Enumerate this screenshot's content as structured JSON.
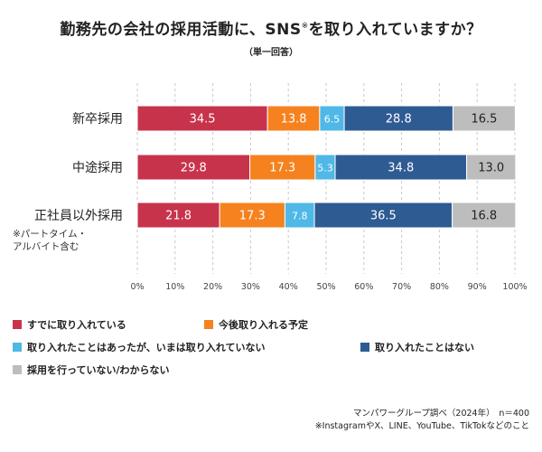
{
  "title_main": "勤務先の会社の採用活動に、SNS",
  "title_mark": "※",
  "title_tail": "を取り入れていますか？",
  "subtitle": "（単一回答）",
  "chart_data": {
    "type": "bar",
    "orientation": "horizontal",
    "stacked": true,
    "categories": [
      "新卒採用",
      "中途採用",
      "正社員以外採用"
    ],
    "category_notes": [
      "",
      "",
      "※パートタイム・アルバイト含む"
    ],
    "series": [
      {
        "name": "すでに取り入れている",
        "color": "#c8334c",
        "values": [
          34.5,
          29.8,
          21.8
        ]
      },
      {
        "name": "今後取り入れる予定",
        "color": "#f5821f",
        "values": [
          13.8,
          17.3,
          17.3
        ]
      },
      {
        "name": "取り入れたことはあったが、いまは取り入れていない",
        "color": "#4fb8e6",
        "values": [
          6.5,
          5.3,
          7.8
        ]
      },
      {
        "name": "取り入れたことはない",
        "color": "#2f5b93",
        "values": [
          28.8,
          34.8,
          36.5
        ]
      },
      {
        "name": "採用を行っていない/わからない",
        "color": "#bdbdbd",
        "values": [
          16.5,
          13.0,
          16.8
        ]
      }
    ],
    "value_labels": [
      [
        "34.5",
        "13.8",
        "6.5",
        "28.8",
        "16.5"
      ],
      [
        "29.8",
        "17.3",
        "5.3",
        "34.8",
        "13.0"
      ],
      [
        "21.8",
        "17.3",
        "7.8",
        "36.5",
        "16.8"
      ]
    ],
    "xlim": [
      0,
      100
    ],
    "xticks": [
      "0%",
      "10%",
      "20%",
      "30%",
      "40%",
      "50%",
      "60%",
      "70%",
      "80%",
      "90%",
      "100%"
    ],
    "grid": "vertical dashed",
    "legend": "bottom"
  },
  "source": {
    "line1": "マンパワーグループ調べ（2024年）　n＝400",
    "line2": "※InstagramやX、LINE、YouTube、TikTokなどのこと"
  }
}
